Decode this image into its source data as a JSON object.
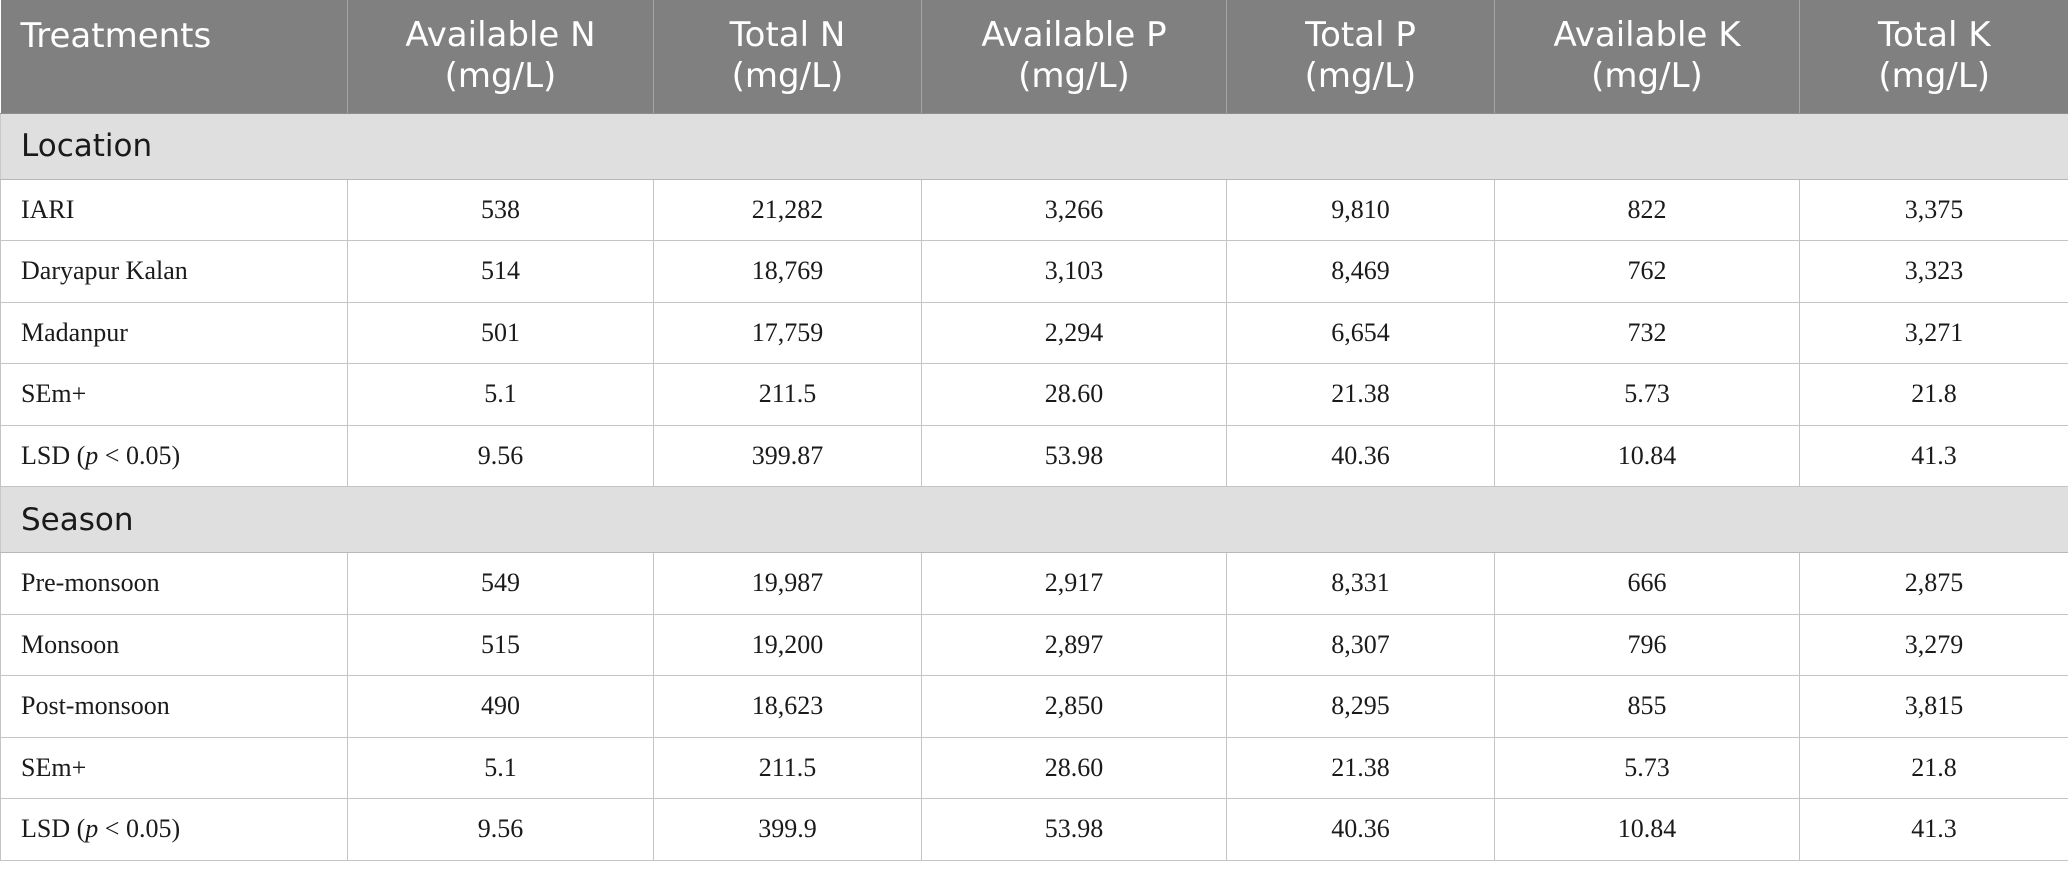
{
  "table": {
    "headers": [
      {
        "line1": "Treatments",
        "line2": ""
      },
      {
        "line1": "Available N",
        "line2": "(mg/L)"
      },
      {
        "line1": "Total N",
        "line2": "(mg/L)"
      },
      {
        "line1": "Available P",
        "line2": "(mg/L)"
      },
      {
        "line1": "Total P",
        "line2": "(mg/L)"
      },
      {
        "line1": "Available K",
        "line2": "(mg/L)"
      },
      {
        "line1": "Total K",
        "line2": "(mg/L)"
      }
    ],
    "sections": [
      {
        "title": "Location",
        "rows": [
          {
            "label": "IARI",
            "values": [
              "538",
              "21,282",
              "3,266",
              "9,810",
              "822",
              "3,375"
            ]
          },
          {
            "label": "Daryapur Kalan",
            "values": [
              "514",
              "18,769",
              "3,103",
              "8,469",
              "762",
              "3,323"
            ]
          },
          {
            "label": "Madanpur",
            "values": [
              "501",
              "17,759",
              "2,294",
              "6,654",
              "732",
              "3,271"
            ]
          },
          {
            "label": "SEm+",
            "values": [
              "5.1",
              "211.5",
              "28.60",
              "21.38",
              "5.73",
              "21.8"
            ]
          },
          {
            "label_prefix": "LSD (",
            "label_italic": "p",
            "label_suffix": " < 0.05)",
            "values": [
              "9.56",
              "399.87",
              "53.98",
              "40.36",
              "10.84",
              "41.3"
            ]
          }
        ]
      },
      {
        "title": "Season",
        "rows": [
          {
            "label": "Pre-monsoon",
            "values": [
              "549",
              "19,987",
              "2,917",
              "8,331",
              "666",
              "2,875"
            ]
          },
          {
            "label": "Monsoon",
            "values": [
              "515",
              "19,200",
              "2,897",
              "8,307",
              "796",
              "3,279"
            ]
          },
          {
            "label": "Post-monsoon",
            "values": [
              "490",
              "18,623",
              "2,850",
              "8,295",
              "855",
              "3,815"
            ]
          },
          {
            "label": "SEm+",
            "values": [
              "5.1",
              "211.5",
              "28.60",
              "21.38",
              "5.73",
              "21.8"
            ]
          },
          {
            "label_prefix": "LSD (",
            "label_italic": "p",
            "label_suffix": " < 0.05)",
            "values": [
              "9.56",
              "399.9",
              "53.98",
              "40.36",
              "10.84",
              "41.3"
            ]
          }
        ]
      }
    ]
  }
}
